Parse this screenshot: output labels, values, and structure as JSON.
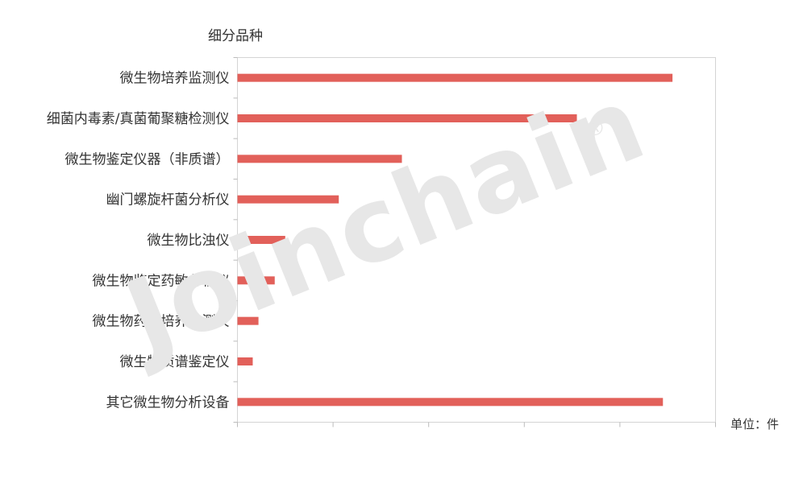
{
  "chart_data": {
    "type": "bar",
    "orientation": "horizontal",
    "y_axis_title": "细分品种",
    "unit_label": "单位：件",
    "categories": [
      "微生物培养监测仪",
      "细菌内毒素/真菌葡聚糖检测仪",
      "微生物鉴定仪器（非质谱）",
      "幽门螺旋杆菌分析仪",
      "微生物比浊仪",
      "微生物鉴定药敏分析仪",
      "微生物药敏培养监测仪",
      "微生物质谱鉴定仪",
      "其它微生物分析设备"
    ],
    "values": [
      455,
      355,
      172,
      106,
      50,
      39,
      22,
      16,
      445
    ],
    "xlim": [
      0,
      500
    ],
    "x_ticks": [
      0,
      100,
      200,
      300,
      400,
      500
    ],
    "x_tick_labels_shown": false,
    "grid": false,
    "bar_color": "#e2605a"
  },
  "watermark": {
    "text": "Joinchain",
    "mark": "®"
  }
}
